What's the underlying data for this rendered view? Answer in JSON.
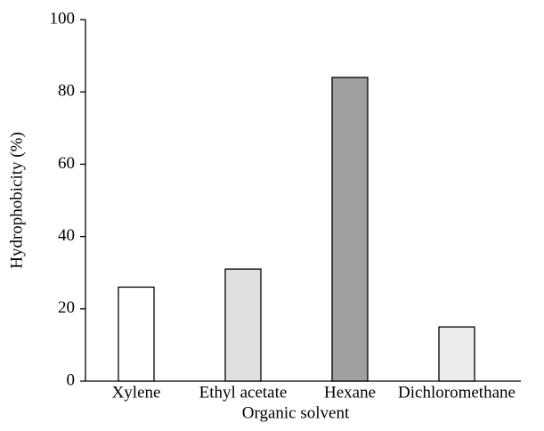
{
  "chart_data": {
    "type": "bar",
    "categories": [
      "Xylene",
      "Ethyl acetate",
      "Hexane",
      "Dichloromethane"
    ],
    "values": [
      26,
      31,
      84,
      15
    ],
    "colors": [
      "#ffffff",
      "#e0e0e0",
      "#a0a0a0",
      "#ececec"
    ],
    "ylabel": "Hydrophobicity (%)",
    "xlabel": "Organic solvent",
    "ylim": [
      0,
      100
    ],
    "yticks": [
      0,
      20,
      40,
      60,
      80,
      100
    ],
    "grid": false
  }
}
